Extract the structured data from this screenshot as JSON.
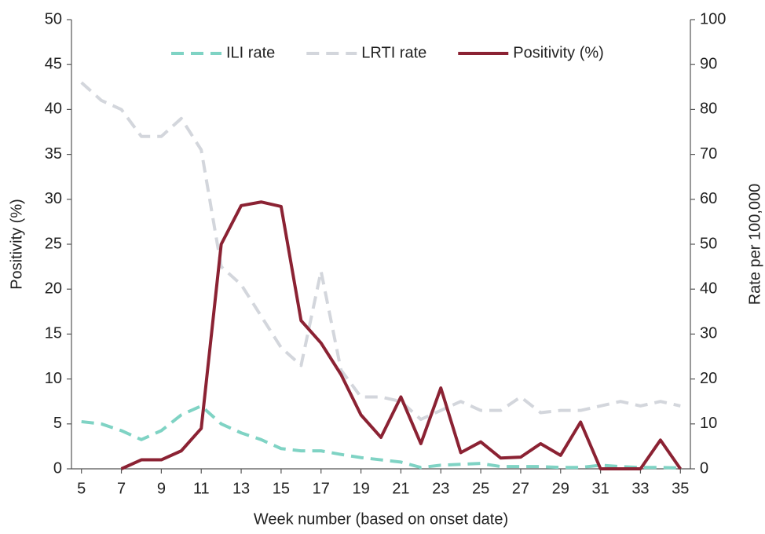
{
  "chart_data": {
    "type": "line",
    "x_label": "Week number (based on onset date)",
    "y_label": "Positivity (%)",
    "y2_label": "Rate per 100,000",
    "x": [
      5,
      6,
      7,
      8,
      9,
      10,
      11,
      12,
      13,
      14,
      15,
      16,
      17,
      18,
      19,
      20,
      21,
      22,
      23,
      24,
      25,
      26,
      27,
      28,
      29,
      30,
      31,
      32,
      33,
      34,
      35
    ],
    "series": [
      {
        "name": "ILI rate",
        "color": "#7fd3c4",
        "dashed": true,
        "axis": "y2",
        "values": [
          10.5,
          10,
          8.5,
          6.5,
          8.5,
          12,
          14,
          10,
          8,
          6.5,
          4.5,
          4,
          4,
          3.2,
          2.5,
          2,
          1.5,
          0.3,
          0.8,
          1,
          1.2,
          0.5,
          0.5,
          0.5,
          0.3,
          0.3,
          0.8,
          0.5,
          0.3,
          0.3,
          0.2
        ]
      },
      {
        "name": "LRTI rate",
        "color": "#d3d6dc",
        "dashed": true,
        "axis": "y2",
        "values": [
          86,
          82,
          80,
          74,
          74,
          78,
          71,
          45,
          41,
          34,
          27,
          23,
          44,
          22,
          16,
          16,
          15,
          11,
          13,
          15,
          13,
          13,
          16,
          12.5,
          13,
          13,
          14,
          15,
          14,
          15,
          14
        ]
      },
      {
        "name": "Positivity (%)",
        "color": "#8b2233",
        "dashed": false,
        "values": [
          null,
          null,
          0,
          1,
          1,
          2,
          4.5,
          25,
          29.3,
          29.7,
          29.2,
          16.5,
          14,
          10.5,
          6,
          3.5,
          8,
          2.8,
          9,
          1.8,
          3,
          1.2,
          1.3,
          2.8,
          1.5,
          5.2,
          0,
          0,
          0,
          3.2,
          0
        ]
      }
    ],
    "xlim": [
      4.5,
      35.5
    ],
    "xticks": [
      5,
      7,
      9,
      11,
      13,
      15,
      17,
      19,
      21,
      23,
      25,
      27,
      29,
      31,
      33,
      35
    ],
    "ylim": [
      0,
      50
    ],
    "yticks": [
      0,
      5,
      10,
      15,
      20,
      25,
      30,
      35,
      40,
      45,
      50
    ],
    "y2lim": [
      0,
      100
    ],
    "y2ticks": [
      0,
      10,
      20,
      30,
      40,
      50,
      60,
      70,
      80,
      90,
      100
    ],
    "grid": false,
    "legend": "top"
  }
}
